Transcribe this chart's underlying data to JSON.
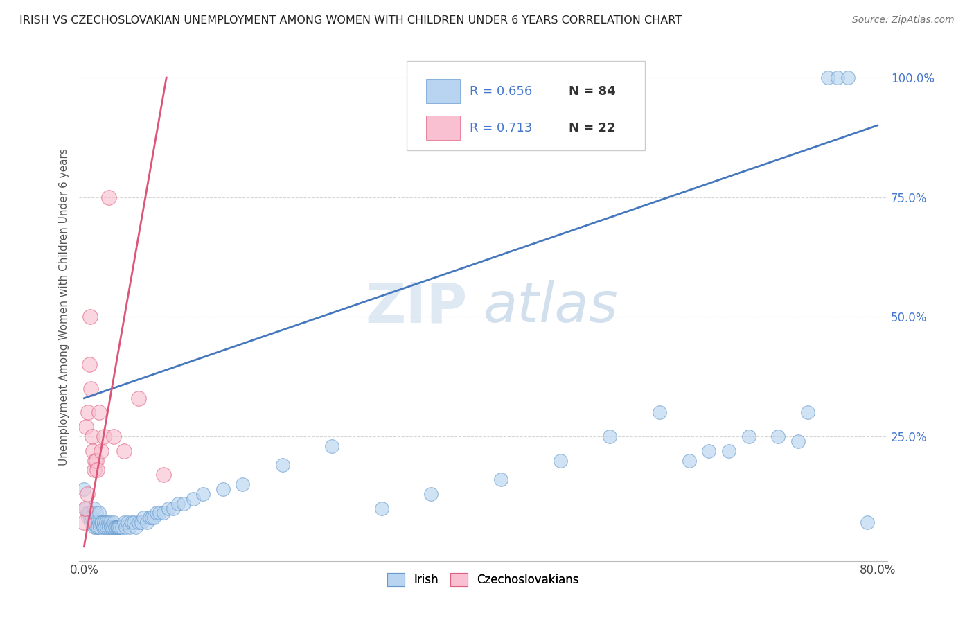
{
  "title": "IRISH VS CZECHOSLOVAKIAN UNEMPLOYMENT AMONG WOMEN WITH CHILDREN UNDER 6 YEARS CORRELATION CHART",
  "source": "Source: ZipAtlas.com",
  "xmin": 0.0,
  "xmax": 0.8,
  "ymin": 0.0,
  "ymax": 1.05,
  "watermark_zip": "ZIP",
  "watermark_atlas": "atlas",
  "legend_irish_r": 0.656,
  "legend_irish_n": 84,
  "legend_czech_r": 0.713,
  "legend_czech_n": 22,
  "irish_fill_color": "#b8d4f0",
  "irish_edge_color": "#6699cc",
  "czech_fill_color": "#f8c0d0",
  "czech_edge_color": "#e06080",
  "irish_line_color": "#4477bb",
  "czech_line_color": "#dd5577",
  "background_color": "#ffffff",
  "grid_color": "#cccccc",
  "title_color": "#222222",
  "ylabel": "Unemployment Among Women with Children Under 6 years",
  "legend_r_color": "#4477cc",
  "legend_n_color": "#333333",
  "ytick_color": "#4477cc",
  "irish_x": [
    0.0,
    0.002,
    0.003,
    0.004,
    0.005,
    0.006,
    0.007,
    0.008,
    0.009,
    0.01,
    0.01,
    0.011,
    0.012,
    0.012,
    0.013,
    0.014,
    0.015,
    0.015,
    0.016,
    0.017,
    0.018,
    0.019,
    0.02,
    0.021,
    0.022,
    0.023,
    0.024,
    0.025,
    0.026,
    0.027,
    0.028,
    0.029,
    0.03,
    0.031,
    0.032,
    0.033,
    0.034,
    0.035,
    0.036,
    0.038,
    0.04,
    0.042,
    0.044,
    0.046,
    0.048,
    0.05,
    0.052,
    0.055,
    0.058,
    0.06,
    0.063,
    0.066,
    0.068,
    0.07,
    0.073,
    0.076,
    0.08,
    0.085,
    0.09,
    0.095,
    0.1,
    0.11,
    0.12,
    0.14,
    0.16,
    0.2,
    0.25,
    0.3,
    0.35,
    0.42,
    0.48,
    0.53,
    0.58,
    0.61,
    0.63,
    0.65,
    0.67,
    0.7,
    0.72,
    0.73,
    0.75,
    0.76,
    0.77,
    0.79
  ],
  "irish_y": [
    0.14,
    0.1,
    0.09,
    0.08,
    0.09,
    0.08,
    0.07,
    0.08,
    0.07,
    0.06,
    0.1,
    0.07,
    0.06,
    0.09,
    0.07,
    0.06,
    0.07,
    0.09,
    0.06,
    0.07,
    0.07,
    0.06,
    0.07,
    0.06,
    0.07,
    0.06,
    0.07,
    0.06,
    0.07,
    0.06,
    0.06,
    0.06,
    0.07,
    0.06,
    0.06,
    0.06,
    0.06,
    0.06,
    0.06,
    0.06,
    0.07,
    0.06,
    0.07,
    0.06,
    0.07,
    0.07,
    0.06,
    0.07,
    0.07,
    0.08,
    0.07,
    0.08,
    0.08,
    0.08,
    0.09,
    0.09,
    0.09,
    0.1,
    0.1,
    0.11,
    0.11,
    0.12,
    0.13,
    0.14,
    0.15,
    0.19,
    0.23,
    0.1,
    0.13,
    0.16,
    0.2,
    0.25,
    0.3,
    0.2,
    0.22,
    0.22,
    0.25,
    0.25,
    0.24,
    0.3,
    1.0,
    1.0,
    1.0,
    0.07
  ],
  "czech_x": [
    0.0,
    0.001,
    0.002,
    0.003,
    0.004,
    0.005,
    0.006,
    0.007,
    0.008,
    0.009,
    0.01,
    0.011,
    0.012,
    0.013,
    0.015,
    0.017,
    0.02,
    0.025,
    0.03,
    0.04,
    0.055,
    0.08
  ],
  "czech_y": [
    0.07,
    0.1,
    0.27,
    0.13,
    0.3,
    0.4,
    0.5,
    0.35,
    0.25,
    0.22,
    0.18,
    0.2,
    0.2,
    0.18,
    0.3,
    0.22,
    0.25,
    0.75,
    0.25,
    0.22,
    0.33,
    0.17
  ],
  "irish_trend_x": [
    0.0,
    0.8
  ],
  "irish_trend_y": [
    0.33,
    0.9
  ],
  "czech_trend_x": [
    0.0,
    0.083
  ],
  "czech_trend_y": [
    0.02,
    1.0
  ]
}
